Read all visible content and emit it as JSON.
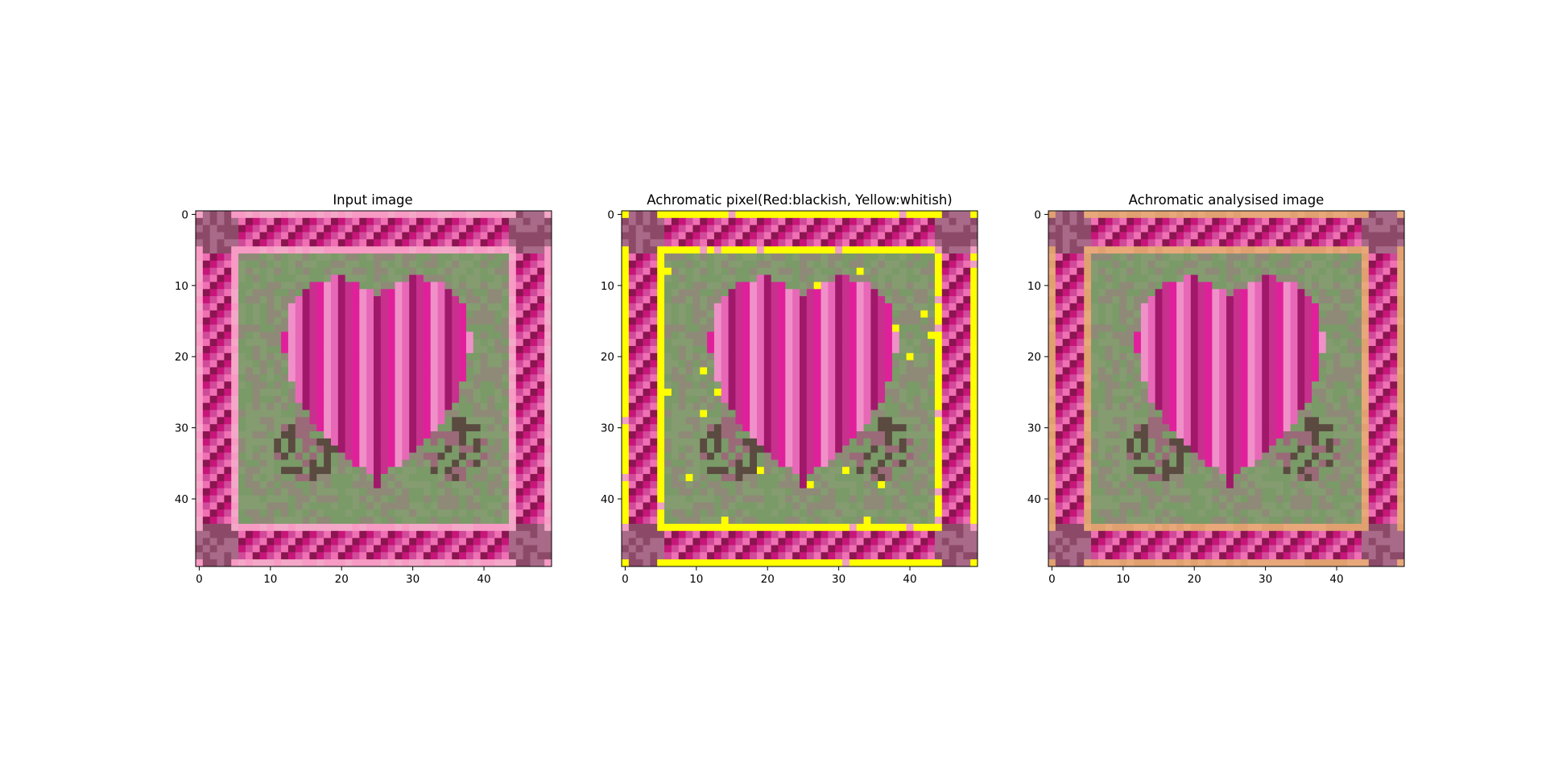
{
  "chart_data": [
    {
      "type": "heatmap",
      "title": "Input image",
      "palette": "input",
      "grid_size": [
        50,
        50
      ],
      "x_ticks": [
        "0",
        "10",
        "20",
        "30",
        "40"
      ],
      "y_ticks": [
        "0",
        "10",
        "20",
        "30",
        "40"
      ],
      "xlim": [
        -0.5,
        49.5
      ],
      "ylim": [
        49.5,
        -0.5
      ]
    },
    {
      "type": "heatmap",
      "title": "Achromatic pixel(Red:blackish, Yellow:whitish)",
      "palette": "mask",
      "grid_size": [
        50,
        50
      ],
      "x_ticks": [
        "0",
        "10",
        "20",
        "30",
        "40"
      ],
      "y_ticks": [
        "0",
        "10",
        "20",
        "30",
        "40"
      ],
      "xlim": [
        -0.5,
        49.5
      ],
      "ylim": [
        49.5,
        -0.5
      ]
    },
    {
      "type": "heatmap",
      "title": "Achromatic analysised image",
      "palette": "analysed",
      "grid_size": [
        50,
        50
      ],
      "x_ticks": [
        "0",
        "10",
        "20",
        "30",
        "40"
      ],
      "y_ticks": [
        "0",
        "10",
        "20",
        "30",
        "40"
      ],
      "xlim": [
        -0.5,
        49.5
      ],
      "ylim": [
        49.5,
        -0.5
      ]
    }
  ],
  "colors": {
    "input_light_pink": "#f79ac4",
    "mask_yellow": "#ffff00",
    "analysed_tan": "#e0a070",
    "magenta": "#c8157a",
    "dark_magenta": "#8a1550",
    "green": "#7a9a68",
    "heart_magenta": "#e0209a"
  }
}
